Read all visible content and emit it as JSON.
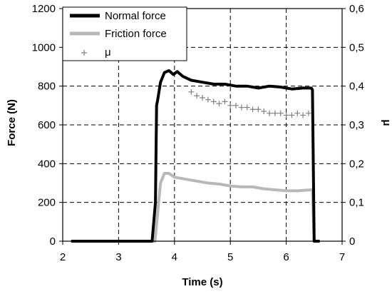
{
  "chart_data": {
    "type": "line",
    "xlabel": "Time (s)",
    "ylabel": "Force (N)",
    "y2label": "μ",
    "xlim": [
      2,
      7
    ],
    "ylim": [
      0,
      1200
    ],
    "y2lim": [
      0,
      0.6
    ],
    "x_ticks": [
      "2",
      "3",
      "4",
      "5",
      "6",
      "7"
    ],
    "y_ticks": [
      "0",
      "200",
      "400",
      "600",
      "800",
      "1000",
      "1200"
    ],
    "y2_ticks": [
      "0",
      "0,1",
      "0,2",
      "0,3",
      "0,4",
      "0,5",
      "0,6"
    ],
    "grid": "dashed",
    "legend_position": "top-left",
    "colors": {
      "normal": "#000000",
      "friction": "#b8b8b8",
      "mu": "#808080"
    },
    "series": [
      {
        "name": "Normal force",
        "axis": "left",
        "style": "thick-line",
        "x": [
          2.15,
          3.0,
          3.6,
          3.66,
          3.68,
          3.7,
          3.75,
          3.82,
          3.9,
          3.98,
          4.05,
          4.15,
          4.3,
          4.5,
          4.7,
          4.9,
          5.1,
          5.3,
          5.5,
          5.7,
          5.9,
          6.1,
          6.3,
          6.45,
          6.47,
          6.5,
          6.6
        ],
        "y": [
          0,
          0,
          0,
          200,
          700,
          730,
          820,
          870,
          880,
          860,
          875,
          850,
          830,
          820,
          810,
          810,
          800,
          800,
          790,
          800,
          795,
          785,
          790,
          790,
          780,
          0,
          0
        ]
      },
      {
        "name": "Friction force",
        "axis": "left",
        "style": "thick-line",
        "x": [
          2.15,
          3.0,
          3.65,
          3.7,
          3.75,
          3.82,
          3.9,
          4.0,
          4.2,
          4.4,
          4.6,
          4.8,
          5.0,
          5.2,
          5.4,
          5.6,
          5.8,
          6.0,
          6.2,
          6.45,
          6.47,
          6.5,
          6.6
        ],
        "y": [
          0,
          0,
          0,
          150,
          300,
          350,
          350,
          330,
          320,
          310,
          300,
          295,
          285,
          280,
          280,
          270,
          265,
          260,
          260,
          265,
          260,
          0,
          0
        ]
      },
      {
        "name": "μ",
        "axis": "right",
        "style": "plus-markers",
        "x": [
          4.3,
          4.4,
          4.5,
          4.6,
          4.7,
          4.8,
          4.9,
          5.0,
          5.1,
          5.2,
          5.3,
          5.4,
          5.5,
          5.6,
          5.7,
          5.8,
          5.9,
          6.0,
          6.1,
          6.2,
          6.3,
          6.4
        ],
        "y": [
          0.385,
          0.375,
          0.37,
          0.365,
          0.36,
          0.355,
          0.36,
          0.35,
          0.35,
          0.345,
          0.345,
          0.34,
          0.34,
          0.335,
          0.33,
          0.33,
          0.33,
          0.325,
          0.325,
          0.33,
          0.325,
          0.33
        ]
      }
    ]
  }
}
